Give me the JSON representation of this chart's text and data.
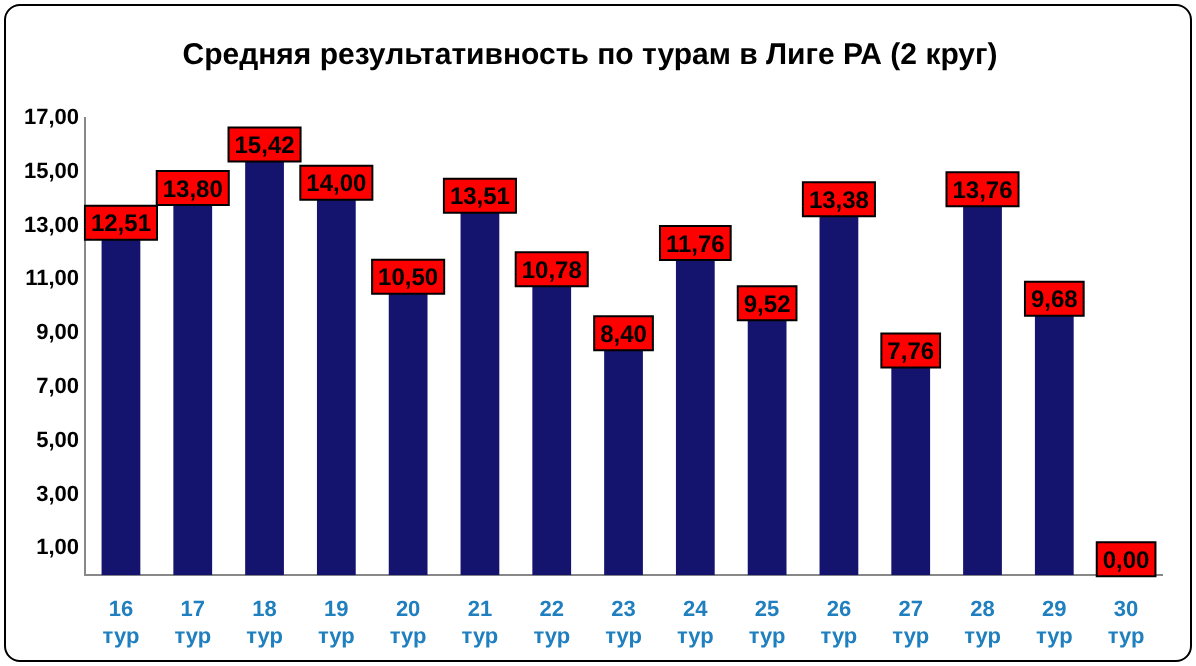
{
  "chart_data": {
    "type": "bar",
    "title": "Средняя результативность по турам в Лиге РА (2 круг)",
    "categories": [
      "16 тур",
      "17 тур",
      "18 тур",
      "19 тур",
      "20 тур",
      "21 тур",
      "22 тур",
      "23 тур",
      "24 тур",
      "25 тур",
      "26 тур",
      "27 тур",
      "28 тур",
      "29 тур",
      "30 тур"
    ],
    "values": [
      12.51,
      13.8,
      15.42,
      14.0,
      10.5,
      13.51,
      10.78,
      8.4,
      11.76,
      9.52,
      13.38,
      7.76,
      13.76,
      9.68,
      0.0
    ],
    "value_labels": [
      "12,51",
      "13,80",
      "15,42",
      "14,00",
      "10,50",
      "13,51",
      "10,78",
      "8,40",
      "11,76",
      "9,52",
      "13,38",
      "7,76",
      "13,76",
      "9,68",
      "0,00"
    ],
    "color": "#14146e",
    "ylim": [
      0,
      17
    ],
    "yticks": [
      {
        "value": 1,
        "label": "1,00"
      },
      {
        "value": 3,
        "label": "3,00"
      },
      {
        "value": 5,
        "label": "5,00"
      },
      {
        "value": 7,
        "label": "7,00"
      },
      {
        "value": 9,
        "label": "9,00"
      },
      {
        "value": 11,
        "label": "11,00"
      },
      {
        "value": 13,
        "label": "13,00"
      },
      {
        "value": 15,
        "label": "15,00"
      },
      {
        "value": 17,
        "label": "17,00"
      }
    ],
    "grid": false,
    "legend": false
  }
}
